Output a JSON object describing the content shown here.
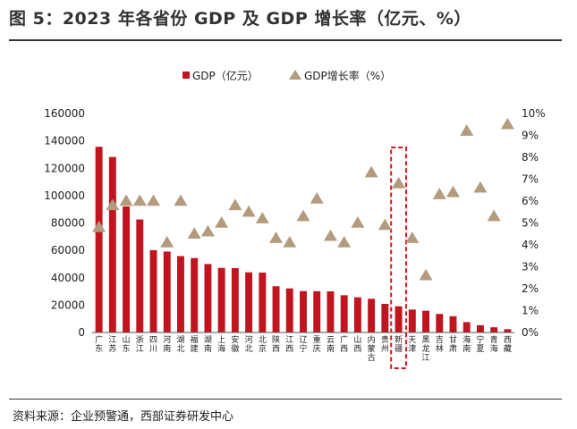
{
  "figure": {
    "title": "图 5：2023 年各省份 GDP 及 GDP 增长率（亿元、%）",
    "source": "资料来源：企业预警通，西部证券研发中心"
  },
  "chart_data": {
    "type": "bar",
    "title": "图 5：2023 年各省份 GDP 及 GDP 增长率（亿元、%）",
    "categories": [
      "广东",
      "江苏",
      "山东",
      "浙江",
      "四川",
      "河南",
      "湖北",
      "福建",
      "湖南",
      "上海",
      "安徽",
      "河北",
      "北京",
      "陕西",
      "江西",
      "辽宁",
      "重庆",
      "云南",
      "广西",
      "山西",
      "内蒙古",
      "贵州",
      "新疆",
      "天津",
      "黑龙江",
      "吉林",
      "甘肃",
      "海南",
      "宁夏",
      "青海",
      "西藏"
    ],
    "series": [
      {
        "name": "GDP（亿元）",
        "type": "bar",
        "axis": "left",
        "color": "#c0141e",
        "values": [
          135673,
          128222,
          92069,
          82553,
          60133,
          59132,
          55804,
          54355,
          50013,
          47219,
          47051,
          43944,
          43761,
          33786,
          32200,
          30209,
          30146,
          30021,
          27202,
          25698,
          24627,
          20913,
          19126,
          16737,
          15884,
          13531,
          11864,
          7551,
          5315,
          3799,
          2393
        ]
      },
      {
        "name": "GDP增长率（%）",
        "type": "scatter",
        "axis": "right",
        "marker": "triangle",
        "color": "#b39b7e",
        "values": [
          4.8,
          5.8,
          6.0,
          6.0,
          6.0,
          4.1,
          6.0,
          4.5,
          4.6,
          5.0,
          5.8,
          5.5,
          5.2,
          4.3,
          4.1,
          5.3,
          6.1,
          4.4,
          4.1,
          5.0,
          7.3,
          4.9,
          6.8,
          4.3,
          2.6,
          6.3,
          6.4,
          9.2,
          6.6,
          5.3,
          9.5
        ]
      }
    ],
    "y_left": {
      "min": 0,
      "max": 160000,
      "ticks": [
        0,
        20000,
        40000,
        60000,
        80000,
        100000,
        120000,
        140000,
        160000
      ]
    },
    "y_right": {
      "min": 0,
      "max": 10,
      "ticks": [
        "0%",
        "1%",
        "2%",
        "3%",
        "4%",
        "5%",
        "6%",
        "7%",
        "8%",
        "9%",
        "10%"
      ]
    },
    "highlight": {
      "category": "新疆",
      "style": "red dashed box"
    },
    "legend": {
      "position": "top-center",
      "entries": [
        "GDP（亿元）",
        "GDP增长率（%）"
      ]
    }
  }
}
